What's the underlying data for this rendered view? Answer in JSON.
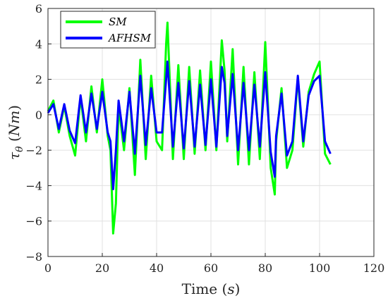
{
  "chart_data": {
    "type": "line",
    "xlabel": "Time (s)",
    "ylabel": "τθ (Nm)",
    "xlim": [
      0,
      120
    ],
    "ylim": [
      -8,
      6
    ],
    "xticks": [
      0,
      20,
      40,
      60,
      80,
      100,
      120
    ],
    "yticks": [
      -8,
      -6,
      -4,
      -2,
      0,
      2,
      4,
      6
    ],
    "grid": true,
    "legend_position": "top-left",
    "series": [
      {
        "name": "SM",
        "color": "#00ff00",
        "x": [
          0,
          2,
          4,
          6,
          8,
          10,
          12,
          14,
          16,
          18,
          20,
          22,
          23,
          24,
          25,
          26,
          28,
          30,
          32,
          34,
          36,
          38,
          40,
          42,
          43.5,
          44,
          46,
          48,
          50,
          52,
          54,
          56,
          58,
          60,
          62,
          64,
          65,
          66,
          68,
          70,
          72,
          74,
          76,
          78,
          80,
          82,
          83.5,
          84,
          86,
          88,
          90,
          92,
          94,
          96,
          98,
          100,
          102,
          104
        ],
        "y": [
          0.2,
          0.8,
          -1.0,
          0.5,
          -1.2,
          -2.3,
          1.0,
          -1.5,
          1.6,
          -1.0,
          2.0,
          -1.2,
          -2.0,
          -6.7,
          -5.0,
          0.5,
          -2.0,
          1.5,
          -3.4,
          3.1,
          -2.5,
          2.2,
          -1.5,
          -2.0,
          4.0,
          5.2,
          -2.5,
          2.8,
          -2.5,
          2.7,
          -2.2,
          2.5,
          -2.0,
          3.0,
          -2.0,
          4.2,
          2.5,
          -1.5,
          3.7,
          -2.8,
          2.7,
          -2.8,
          2.4,
          -2.5,
          4.1,
          -3.0,
          -4.5,
          -1.5,
          1.5,
          -3.0,
          -2.0,
          2.1,
          -1.8,
          1.3,
          2.3,
          3.0,
          -2.2,
          -2.8
        ]
      },
      {
        "name": "AFHSM",
        "color": "#0000ff",
        "x": [
          0,
          2,
          4,
          6,
          8,
          10,
          12,
          14,
          16,
          18,
          20,
          22,
          23,
          24,
          25,
          26,
          28,
          30,
          32,
          34,
          36,
          38,
          40,
          42,
          43.5,
          44,
          46,
          48,
          50,
          52,
          54,
          56,
          58,
          60,
          62,
          64,
          65,
          66,
          68,
          70,
          72,
          74,
          76,
          78,
          80,
          82,
          83.5,
          84,
          86,
          88,
          90,
          92,
          94,
          96,
          98,
          100,
          102,
          104
        ],
        "y": [
          0.1,
          0.6,
          -0.8,
          0.6,
          -0.9,
          -1.6,
          1.1,
          -1.0,
          1.2,
          -0.8,
          1.3,
          -1.0,
          -1.5,
          -4.2,
          -2.0,
          0.8,
          -1.5,
          1.3,
          -2.2,
          2.2,
          -1.7,
          1.5,
          -1.0,
          -1.0,
          2.0,
          3.0,
          -1.8,
          1.8,
          -1.9,
          1.9,
          -1.8,
          1.7,
          -1.7,
          2.0,
          -1.8,
          2.7,
          1.8,
          -1.2,
          2.3,
          -2.0,
          1.8,
          -2.0,
          1.7,
          -1.8,
          2.4,
          -2.1,
          -3.5,
          -1.2,
          1.2,
          -2.3,
          -1.5,
          2.2,
          -1.5,
          1.1,
          1.9,
          2.2,
          -1.5,
          -2.2
        ]
      }
    ]
  }
}
